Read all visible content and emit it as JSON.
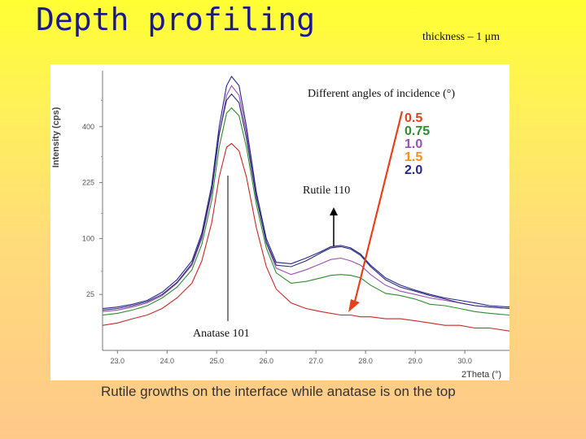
{
  "slide": {
    "title": "Depth profiling",
    "thickness_label": "thickness – 1 μm",
    "caption": "Rutile growths on the interface while anatase is on the top"
  },
  "annotations": {
    "incidence_title": "Different angles of incidence (°)",
    "rutile_label": "Rutile 110",
    "anatase_label": "Anatase 101"
  },
  "colors": {
    "arrow": "#e8401c",
    "series_0_5": "#c62828",
    "series_0_75": "#2e8b2e",
    "series_1_0": "#9a4fb0",
    "series_1_5": "#2b2b7a",
    "series_2_0": "#262688"
  },
  "chart_data": {
    "type": "line",
    "xlabel": "2Theta (°)",
    "ylabel": "Intensity (cps)",
    "xlim": [
      22.7,
      30.9
    ],
    "x_ticks": [
      "23.0",
      "24.0",
      "25.0",
      "26.0",
      "27.0",
      "28.0",
      "29.0",
      "30.0"
    ],
    "y_scale": "sqrt",
    "y_ticks": [
      "25",
      "100",
      "225",
      "400"
    ],
    "ylim": [
      0,
      625
    ],
    "legend_title": "Different angles of incidence (°)",
    "x": [
      22.7,
      23.0,
      23.3,
      23.6,
      23.9,
      24.2,
      24.5,
      24.7,
      24.9,
      25.05,
      25.2,
      25.3,
      25.45,
      25.6,
      25.8,
      26.0,
      26.2,
      26.5,
      26.8,
      27.1,
      27.3,
      27.5,
      27.7,
      27.9,
      28.1,
      28.4,
      28.7,
      29.0,
      29.3,
      29.6,
      29.9,
      30.2,
      30.5,
      30.9
    ],
    "series": [
      {
        "name": "0.5",
        "color": "#c62828",
        "values": [
          5,
          6,
          8,
          10,
          14,
          22,
          36,
          64,
          130,
          240,
          330,
          342,
          318,
          240,
          120,
          56,
          30,
          18,
          14,
          12,
          11,
          10,
          10,
          9,
          9,
          8,
          8,
          7,
          6,
          5,
          5,
          4,
          4,
          3
        ]
      },
      {
        "name": "0.75",
        "color": "#2e8b2e",
        "values": [
          10,
          11,
          13,
          16,
          22,
          32,
          52,
          90,
          180,
          330,
          450,
          470,
          440,
          330,
          170,
          84,
          48,
          36,
          38,
          42,
          45,
          46,
          45,
          42,
          34,
          26,
          24,
          21,
          17,
          16,
          14,
          12,
          11,
          10
        ]
      },
      {
        "name": "1.0",
        "color": "#9a4fb0",
        "values": [
          12,
          13,
          15,
          18,
          24,
          36,
          58,
          100,
          200,
          370,
          520,
          560,
          520,
          380,
          190,
          92,
          54,
          46,
          52,
          60,
          66,
          68,
          64,
          58,
          46,
          34,
          28,
          25,
          22,
          20,
          18,
          16,
          15,
          14
        ]
      },
      {
        "name": "1.5",
        "color": "#2b2b7a",
        "values": [
          13,
          14,
          16,
          19,
          25,
          37,
          60,
          104,
          205,
          375,
          500,
          525,
          490,
          360,
          185,
          94,
          58,
          56,
          64,
          76,
          84,
          86,
          82,
          72,
          56,
          40,
          32,
          28,
          24,
          21,
          18,
          16,
          15,
          14
        ]
      },
      {
        "name": "2.0",
        "color": "#262688",
        "values": [
          14,
          15,
          17,
          20,
          27,
          40,
          64,
          110,
          218,
          400,
          560,
          600,
          560,
          400,
          200,
          100,
          62,
          60,
          68,
          78,
          86,
          88,
          84,
          74,
          58,
          42,
          34,
          29,
          25,
          22,
          20,
          18,
          16,
          15
        ]
      }
    ]
  }
}
